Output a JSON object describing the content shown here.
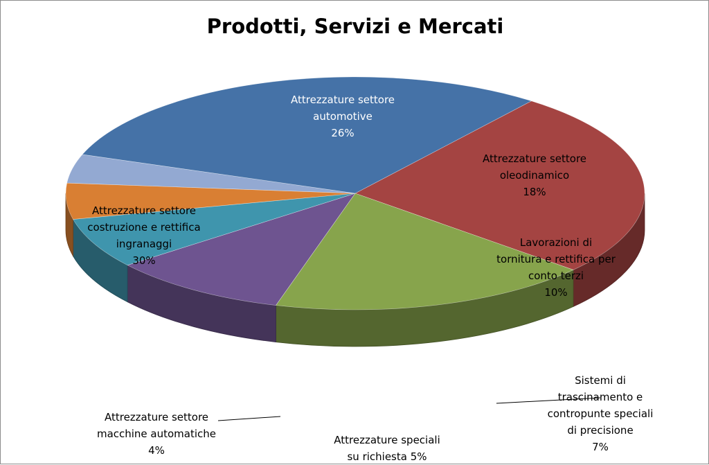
{
  "chart_data": {
    "type": "pie",
    "title": "Prodotti, Servizi e Mercati",
    "slices": [
      {
        "lines": [
          "Attrezzature settore",
          "automotive",
          "26%"
        ],
        "value": 26,
        "color": "#a44442"
      },
      {
        "lines": [
          "Attrezzature settore",
          "oleodinamico",
          "18%"
        ],
        "value": 18,
        "color": "#87a44c"
      },
      {
        "lines": [
          "Lavorazioni di",
          "tornitura e rettifica per",
          "conto terzi",
          "10%"
        ],
        "value": 10,
        "color": "#6e5490"
      },
      {
        "lines": [
          "Sistemi di",
          "trascinamento e",
          "contropunte speciali",
          "di precisione",
          "7%"
        ],
        "value": 7,
        "color": "#3f95ad"
      },
      {
        "lines": [
          "Attrezzature speciali",
          "su richiesta 5%"
        ],
        "value": 5,
        "color": "#d97f33"
      },
      {
        "lines": [
          "Attrezzature settore",
          "macchine automatiche",
          "4%"
        ],
        "value": 4,
        "color": "#93a9d2"
      },
      {
        "lines": [
          "Attrezzature settore",
          "costruzione e rettifica",
          "ingranaggi",
          "30%"
        ],
        "value": 30,
        "color": "#4572a7"
      }
    ]
  }
}
